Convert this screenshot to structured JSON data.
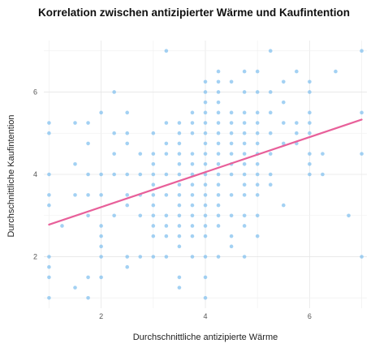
{
  "colors": {
    "point": "#7fbfef",
    "trend": "#e8609a",
    "grid_major": "#e6e6e6",
    "grid_minor": "#f2f2f2"
  },
  "chart_data": {
    "type": "scatter",
    "title": "Korrelation zwischen antizipierter Wärme und Kaufintention",
    "xlabel": "Durchschnittliche antizipierte Wärme",
    "ylabel": "Durchschnittliche Kaufintention",
    "xlim": [
      0.9,
      7.1
    ],
    "ylim": [
      0.75,
      7.25
    ],
    "xticks": [
      2,
      4,
      6
    ],
    "yticks": [
      2,
      4,
      6
    ],
    "grid": true,
    "trend_line": {
      "x": [
        1,
        7
      ],
      "y": [
        2.78,
        5.33
      ]
    },
    "series": [
      {
        "points": [
          [
            1,
            1
          ],
          [
            1,
            1.5
          ],
          [
            1,
            1.75
          ],
          [
            1,
            2
          ],
          [
            1,
            3.25
          ],
          [
            1,
            3.5
          ],
          [
            1,
            4
          ],
          [
            1,
            5
          ],
          [
            1,
            5.25
          ],
          [
            1.25,
            2.75
          ],
          [
            1.5,
            1.25
          ],
          [
            1.5,
            3.5
          ],
          [
            1.5,
            4.25
          ],
          [
            1.5,
            5.25
          ],
          [
            1.75,
            1
          ],
          [
            1.75,
            1.5
          ],
          [
            1.75,
            3
          ],
          [
            1.75,
            3.5
          ],
          [
            1.75,
            4
          ],
          [
            1.75,
            4.75
          ],
          [
            1.75,
            5.25
          ],
          [
            2,
            1.5
          ],
          [
            2,
            2
          ],
          [
            2,
            2.25
          ],
          [
            2,
            2.5
          ],
          [
            2,
            2.75
          ],
          [
            2,
            3.5
          ],
          [
            2,
            4
          ],
          [
            2,
            5.5
          ],
          [
            2.25,
            3
          ],
          [
            2.25,
            4
          ],
          [
            2.25,
            4.5
          ],
          [
            2.25,
            5
          ],
          [
            2.25,
            6
          ],
          [
            2.5,
            1.75
          ],
          [
            2.5,
            2
          ],
          [
            2.5,
            3.25
          ],
          [
            2.5,
            3.5
          ],
          [
            2.5,
            4
          ],
          [
            2.5,
            4.75
          ],
          [
            2.5,
            5
          ],
          [
            2.5,
            5.5
          ],
          [
            2.75,
            2
          ],
          [
            2.75,
            3
          ],
          [
            2.75,
            3.5
          ],
          [
            2.75,
            4
          ],
          [
            2.75,
            4.5
          ],
          [
            3,
            2
          ],
          [
            3,
            2.5
          ],
          [
            3,
            2.75
          ],
          [
            3,
            3
          ],
          [
            3,
            3.25
          ],
          [
            3,
            3.5
          ],
          [
            3,
            3.75
          ],
          [
            3,
            4
          ],
          [
            3,
            4.25
          ],
          [
            3,
            4.5
          ],
          [
            3,
            5
          ],
          [
            3.25,
            2
          ],
          [
            3.25,
            2.5
          ],
          [
            3.25,
            2.75
          ],
          [
            3.25,
            3
          ],
          [
            3.25,
            3.5
          ],
          [
            3.25,
            4
          ],
          [
            3.25,
            4.5
          ],
          [
            3.25,
            4.75
          ],
          [
            3.25,
            5.25
          ],
          [
            3.25,
            7
          ],
          [
            3.5,
            1.25
          ],
          [
            3.5,
            1.5
          ],
          [
            3.5,
            2.25
          ],
          [
            3.5,
            2.5
          ],
          [
            3.5,
            2.75
          ],
          [
            3.5,
            3
          ],
          [
            3.5,
            3.25
          ],
          [
            3.5,
            3.5
          ],
          [
            3.5,
            3.75
          ],
          [
            3.5,
            4
          ],
          [
            3.5,
            4.25
          ],
          [
            3.5,
            4.5
          ],
          [
            3.5,
            4.75
          ],
          [
            3.5,
            5
          ],
          [
            3.5,
            5.25
          ],
          [
            3.75,
            2
          ],
          [
            3.75,
            2.5
          ],
          [
            3.75,
            2.75
          ],
          [
            3.75,
            3
          ],
          [
            3.75,
            3.25
          ],
          [
            3.75,
            3.5
          ],
          [
            3.75,
            3.75
          ],
          [
            3.75,
            4
          ],
          [
            3.75,
            4.25
          ],
          [
            3.75,
            4.5
          ],
          [
            3.75,
            5
          ],
          [
            3.75,
            5.25
          ],
          [
            3.75,
            5.5
          ],
          [
            4,
            1
          ],
          [
            4,
            1.5
          ],
          [
            4,
            2
          ],
          [
            4,
            2.5
          ],
          [
            4,
            2.75
          ],
          [
            4,
            3
          ],
          [
            4,
            3.25
          ],
          [
            4,
            3.5
          ],
          [
            4,
            3.75
          ],
          [
            4,
            4
          ],
          [
            4,
            4.25
          ],
          [
            4,
            4.5
          ],
          [
            4,
            4.75
          ],
          [
            4,
            5
          ],
          [
            4,
            5.25
          ],
          [
            4,
            5.5
          ],
          [
            4,
            5.75
          ],
          [
            4,
            6
          ],
          [
            4,
            6.25
          ],
          [
            4.25,
            2
          ],
          [
            4.25,
            2.75
          ],
          [
            4.25,
            3
          ],
          [
            4.25,
            3.25
          ],
          [
            4.25,
            3.5
          ],
          [
            4.25,
            3.75
          ],
          [
            4.25,
            4
          ],
          [
            4.25,
            4.25
          ],
          [
            4.25,
            4.5
          ],
          [
            4.25,
            4.75
          ],
          [
            4.25,
            5
          ],
          [
            4.25,
            5.25
          ],
          [
            4.25,
            5.5
          ],
          [
            4.25,
            5.75
          ],
          [
            4.25,
            6
          ],
          [
            4.25,
            6.25
          ],
          [
            4.25,
            6.5
          ],
          [
            4.5,
            2.25
          ],
          [
            4.5,
            2.5
          ],
          [
            4.5,
            3
          ],
          [
            4.5,
            3.5
          ],
          [
            4.5,
            4
          ],
          [
            4.5,
            4.25
          ],
          [
            4.5,
            4.5
          ],
          [
            4.5,
            4.75
          ],
          [
            4.5,
            5
          ],
          [
            4.5,
            5.25
          ],
          [
            4.5,
            5.5
          ],
          [
            4.5,
            6.25
          ],
          [
            4.75,
            2
          ],
          [
            4.75,
            2.75
          ],
          [
            4.75,
            3
          ],
          [
            4.75,
            3.5
          ],
          [
            4.75,
            3.75
          ],
          [
            4.75,
            4
          ],
          [
            4.75,
            4.25
          ],
          [
            4.75,
            4.5
          ],
          [
            4.75,
            4.75
          ],
          [
            4.75,
            5
          ],
          [
            4.75,
            5.25
          ],
          [
            4.75,
            5.5
          ],
          [
            4.75,
            6
          ],
          [
            4.75,
            6.5
          ],
          [
            5,
            2.5
          ],
          [
            5,
            3
          ],
          [
            5,
            3.5
          ],
          [
            5,
            3.75
          ],
          [
            5,
            4
          ],
          [
            5,
            4.25
          ],
          [
            5,
            4.5
          ],
          [
            5,
            4.75
          ],
          [
            5,
            5
          ],
          [
            5,
            5.25
          ],
          [
            5,
            5.5
          ],
          [
            5,
            6
          ],
          [
            5,
            6.5
          ],
          [
            5.25,
            3.75
          ],
          [
            5.25,
            4
          ],
          [
            5.25,
            4.5
          ],
          [
            5.25,
            5
          ],
          [
            5.25,
            5.5
          ],
          [
            5.25,
            6
          ],
          [
            5.25,
            7
          ],
          [
            5.5,
            3.25
          ],
          [
            5.5,
            4.75
          ],
          [
            5.5,
            5.25
          ],
          [
            5.5,
            5.75
          ],
          [
            5.5,
            6.25
          ],
          [
            5.75,
            4.75
          ],
          [
            5.75,
            5
          ],
          [
            5.75,
            5.25
          ],
          [
            5.75,
            6.5
          ],
          [
            6,
            4
          ],
          [
            6,
            4.25
          ],
          [
            6,
            4.5
          ],
          [
            6,
            5
          ],
          [
            6,
            5.25
          ],
          [
            6,
            5.5
          ],
          [
            6,
            6
          ],
          [
            6,
            6.25
          ],
          [
            6.25,
            4
          ],
          [
            6.25,
            4.5
          ],
          [
            6.5,
            6.5
          ],
          [
            6.75,
            3
          ],
          [
            7,
            2
          ],
          [
            7,
            4.5
          ],
          [
            7,
            5.5
          ],
          [
            7,
            7
          ]
        ]
      }
    ]
  }
}
